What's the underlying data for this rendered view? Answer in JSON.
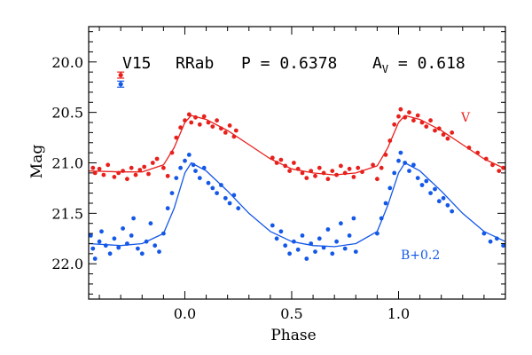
{
  "chart_data": {
    "type": "scatter",
    "title": {
      "star": "V15",
      "type": "RRab",
      "period_label": "P = 0.6378",
      "amp_prefix": "A",
      "amp_sub": "V",
      "amp_value": " = 0.618"
    },
    "xlabel": "Phase",
    "ylabel": "Mag",
    "xlim": [
      -0.45,
      1.5
    ],
    "ylim": [
      22.35,
      19.65
    ],
    "y_inverted": true,
    "xticks": [
      {
        "value": 0.0,
        "label": "0.0"
      },
      {
        "value": 0.5,
        "label": "0.5"
      },
      {
        "value": 1.0,
        "label": "1.0"
      }
    ],
    "yticks": [
      {
        "value": 20.0,
        "label": "20.0"
      },
      {
        "value": 20.5,
        "label": "20.5"
      },
      {
        "value": 21.0,
        "label": "21.0"
      },
      {
        "value": 21.5,
        "label": "21.5"
      },
      {
        "value": 22.0,
        "label": "22.0"
      }
    ],
    "grid": false,
    "legend": "top-left error-bar symbols",
    "colors": {
      "V": "#e8201c",
      "B": "#1458e8",
      "axis": "#000000"
    },
    "series": [
      {
        "name": "V",
        "label": "V",
        "color": "#e8201c",
        "errorbar_halfwidth": 0.03,
        "fit": [
          [
            -0.45,
            21.08
          ],
          [
            -0.3,
            21.09
          ],
          [
            -0.2,
            21.09
          ],
          [
            -0.1,
            21.02
          ],
          [
            -0.05,
            20.85
          ],
          [
            0.0,
            20.6
          ],
          [
            0.03,
            20.53
          ],
          [
            0.1,
            20.57
          ],
          [
            0.2,
            20.68
          ],
          [
            0.3,
            20.82
          ],
          [
            0.4,
            20.96
          ],
          [
            0.5,
            21.06
          ],
          [
            0.6,
            21.1
          ],
          [
            0.7,
            21.12
          ],
          [
            0.8,
            21.1
          ],
          [
            0.9,
            21.03
          ],
          [
            0.95,
            20.85
          ],
          [
            1.0,
            20.6
          ],
          [
            1.03,
            20.53
          ],
          [
            1.1,
            20.57
          ],
          [
            1.2,
            20.68
          ],
          [
            1.3,
            20.82
          ],
          [
            1.4,
            20.96
          ],
          [
            1.5,
            21.06
          ]
        ],
        "points": [
          [
            -0.43,
            21.05
          ],
          [
            -0.42,
            21.1
          ],
          [
            -0.4,
            21.06
          ],
          [
            -0.38,
            21.12
          ],
          [
            -0.36,
            21.02
          ],
          [
            -0.33,
            21.14
          ],
          [
            -0.31,
            21.1
          ],
          [
            -0.29,
            21.08
          ],
          [
            -0.27,
            21.16
          ],
          [
            -0.25,
            21.05
          ],
          [
            -0.23,
            21.12
          ],
          [
            -0.21,
            21.07
          ],
          [
            -0.19,
            21.04
          ],
          [
            -0.17,
            21.11
          ],
          [
            -0.15,
            21.0
          ],
          [
            -0.13,
            20.96
          ],
          [
            -0.1,
            21.05
          ],
          [
            -0.08,
            21.13
          ],
          [
            -0.06,
            20.9
          ],
          [
            -0.04,
            20.75
          ],
          [
            -0.02,
            20.65
          ],
          [
            0.0,
            20.58
          ],
          [
            0.02,
            20.52
          ],
          [
            0.03,
            20.6
          ],
          [
            0.05,
            20.55
          ],
          [
            0.07,
            20.62
          ],
          [
            0.09,
            20.54
          ],
          [
            0.11,
            20.6
          ],
          [
            0.13,
            20.64
          ],
          [
            0.15,
            20.58
          ],
          [
            0.17,
            20.66
          ],
          [
            0.19,
            20.7
          ],
          [
            0.21,
            20.63
          ],
          [
            0.23,
            20.74
          ],
          [
            0.24,
            20.68
          ],
          [
            0.41,
            20.95
          ],
          [
            0.43,
            21.0
          ],
          [
            0.45,
            20.97
          ],
          [
            0.47,
            21.03
          ],
          [
            0.49,
            21.08
          ],
          [
            0.51,
            21.0
          ],
          [
            0.53,
            21.06
          ],
          [
            0.55,
            21.1
          ],
          [
            0.57,
            21.15
          ],
          [
            0.59,
            21.08
          ],
          [
            0.61,
            21.13
          ],
          [
            0.63,
            21.05
          ],
          [
            0.65,
            21.1
          ],
          [
            0.67,
            21.16
          ],
          [
            0.69,
            21.08
          ],
          [
            0.71,
            21.12
          ],
          [
            0.73,
            21.03
          ],
          [
            0.75,
            21.1
          ],
          [
            0.77,
            21.06
          ],
          [
            0.79,
            21.14
          ],
          [
            0.81,
            21.05
          ],
          [
            0.83,
            21.09
          ],
          [
            0.88,
            21.02
          ],
          [
            0.9,
            21.16
          ],
          [
            0.92,
            21.05
          ],
          [
            0.94,
            20.92
          ],
          [
            0.96,
            20.78
          ],
          [
            0.98,
            20.62
          ],
          [
            1.0,
            20.54
          ],
          [
            1.01,
            20.47
          ],
          [
            1.03,
            20.55
          ],
          [
            1.05,
            20.5
          ],
          [
            1.07,
            20.58
          ],
          [
            1.09,
            20.53
          ],
          [
            1.11,
            20.6
          ],
          [
            1.13,
            20.64
          ],
          [
            1.15,
            20.58
          ],
          [
            1.17,
            20.68
          ],
          [
            1.19,
            20.66
          ],
          [
            1.21,
            20.72
          ],
          [
            1.23,
            20.76
          ],
          [
            1.25,
            20.7
          ],
          [
            1.33,
            20.85
          ],
          [
            1.37,
            20.9
          ],
          [
            1.41,
            20.96
          ],
          [
            1.44,
            21.02
          ],
          [
            1.47,
            21.08
          ],
          [
            1.49,
            21.05
          ]
        ]
      },
      {
        "name": "B+0.2",
        "label": "B+0.2",
        "color": "#1458e8",
        "errorbar_halfwidth": 0.03,
        "fit": [
          [
            -0.45,
            21.8
          ],
          [
            -0.3,
            21.82
          ],
          [
            -0.2,
            21.8
          ],
          [
            -0.1,
            21.7
          ],
          [
            -0.05,
            21.45
          ],
          [
            0.0,
            21.1
          ],
          [
            0.03,
            21.0
          ],
          [
            0.1,
            21.08
          ],
          [
            0.2,
            21.28
          ],
          [
            0.3,
            21.5
          ],
          [
            0.4,
            21.68
          ],
          [
            0.5,
            21.78
          ],
          [
            0.6,
            21.82
          ],
          [
            0.7,
            21.83
          ],
          [
            0.8,
            21.8
          ],
          [
            0.9,
            21.68
          ],
          [
            0.95,
            21.42
          ],
          [
            1.0,
            21.1
          ],
          [
            1.03,
            21.0
          ],
          [
            1.1,
            21.08
          ],
          [
            1.2,
            21.28
          ],
          [
            1.3,
            21.5
          ],
          [
            1.4,
            21.68
          ],
          [
            1.5,
            21.78
          ]
        ],
        "points": [
          [
            -0.44,
            21.72
          ],
          [
            -0.43,
            21.85
          ],
          [
            -0.42,
            21.95
          ],
          [
            -0.4,
            21.78
          ],
          [
            -0.39,
            21.68
          ],
          [
            -0.37,
            21.82
          ],
          [
            -0.35,
            21.9
          ],
          [
            -0.33,
            21.75
          ],
          [
            -0.31,
            21.84
          ],
          [
            -0.29,
            21.65
          ],
          [
            -0.27,
            21.8
          ],
          [
            -0.25,
            21.72
          ],
          [
            -0.24,
            21.55
          ],
          [
            -0.22,
            21.85
          ],
          [
            -0.2,
            21.9
          ],
          [
            -0.18,
            21.78
          ],
          [
            -0.16,
            21.6
          ],
          [
            -0.14,
            21.82
          ],
          [
            -0.12,
            21.88
          ],
          [
            -0.1,
            21.7
          ],
          [
            -0.08,
            21.45
          ],
          [
            -0.06,
            21.3
          ],
          [
            -0.04,
            21.15
          ],
          [
            -0.02,
            21.05
          ],
          [
            0.0,
            20.98
          ],
          [
            0.02,
            20.92
          ],
          [
            0.04,
            21.02
          ],
          [
            0.05,
            21.08
          ],
          [
            0.07,
            21.15
          ],
          [
            0.09,
            21.05
          ],
          [
            0.11,
            21.2
          ],
          [
            0.13,
            21.25
          ],
          [
            0.15,
            21.3
          ],
          [
            0.17,
            21.22
          ],
          [
            0.19,
            21.35
          ],
          [
            0.21,
            21.4
          ],
          [
            0.23,
            21.32
          ],
          [
            0.25,
            21.45
          ],
          [
            0.41,
            21.62
          ],
          [
            0.43,
            21.75
          ],
          [
            0.45,
            21.68
          ],
          [
            0.47,
            21.82
          ],
          [
            0.49,
            21.9
          ],
          [
            0.51,
            21.78
          ],
          [
            0.53,
            21.86
          ],
          [
            0.55,
            21.72
          ],
          [
            0.57,
            21.95
          ],
          [
            0.59,
            21.8
          ],
          [
            0.61,
            21.88
          ],
          [
            0.63,
            21.75
          ],
          [
            0.65,
            21.84
          ],
          [
            0.67,
            21.66
          ],
          [
            0.69,
            21.9
          ],
          [
            0.71,
            21.78
          ],
          [
            0.73,
            21.6
          ],
          [
            0.75,
            21.85
          ],
          [
            0.77,
            21.72
          ],
          [
            0.79,
            21.55
          ],
          [
            0.8,
            21.88
          ],
          [
            0.9,
            21.7
          ],
          [
            0.92,
            21.55
          ],
          [
            0.94,
            21.4
          ],
          [
            0.96,
            21.25
          ],
          [
            0.98,
            21.1
          ],
          [
            1.0,
            20.98
          ],
          [
            1.01,
            20.9
          ],
          [
            1.03,
            21.0
          ],
          [
            1.05,
            21.08
          ],
          [
            1.07,
            21.02
          ],
          [
            1.09,
            21.15
          ],
          [
            1.11,
            21.22
          ],
          [
            1.13,
            21.18
          ],
          [
            1.15,
            21.3
          ],
          [
            1.17,
            21.26
          ],
          [
            1.19,
            21.38
          ],
          [
            1.21,
            21.35
          ],
          [
            1.23,
            21.42
          ],
          [
            1.25,
            21.48
          ],
          [
            1.4,
            21.7
          ],
          [
            1.43,
            21.78
          ],
          [
            1.46,
            21.75
          ],
          [
            1.49,
            21.82
          ]
        ]
      }
    ]
  }
}
